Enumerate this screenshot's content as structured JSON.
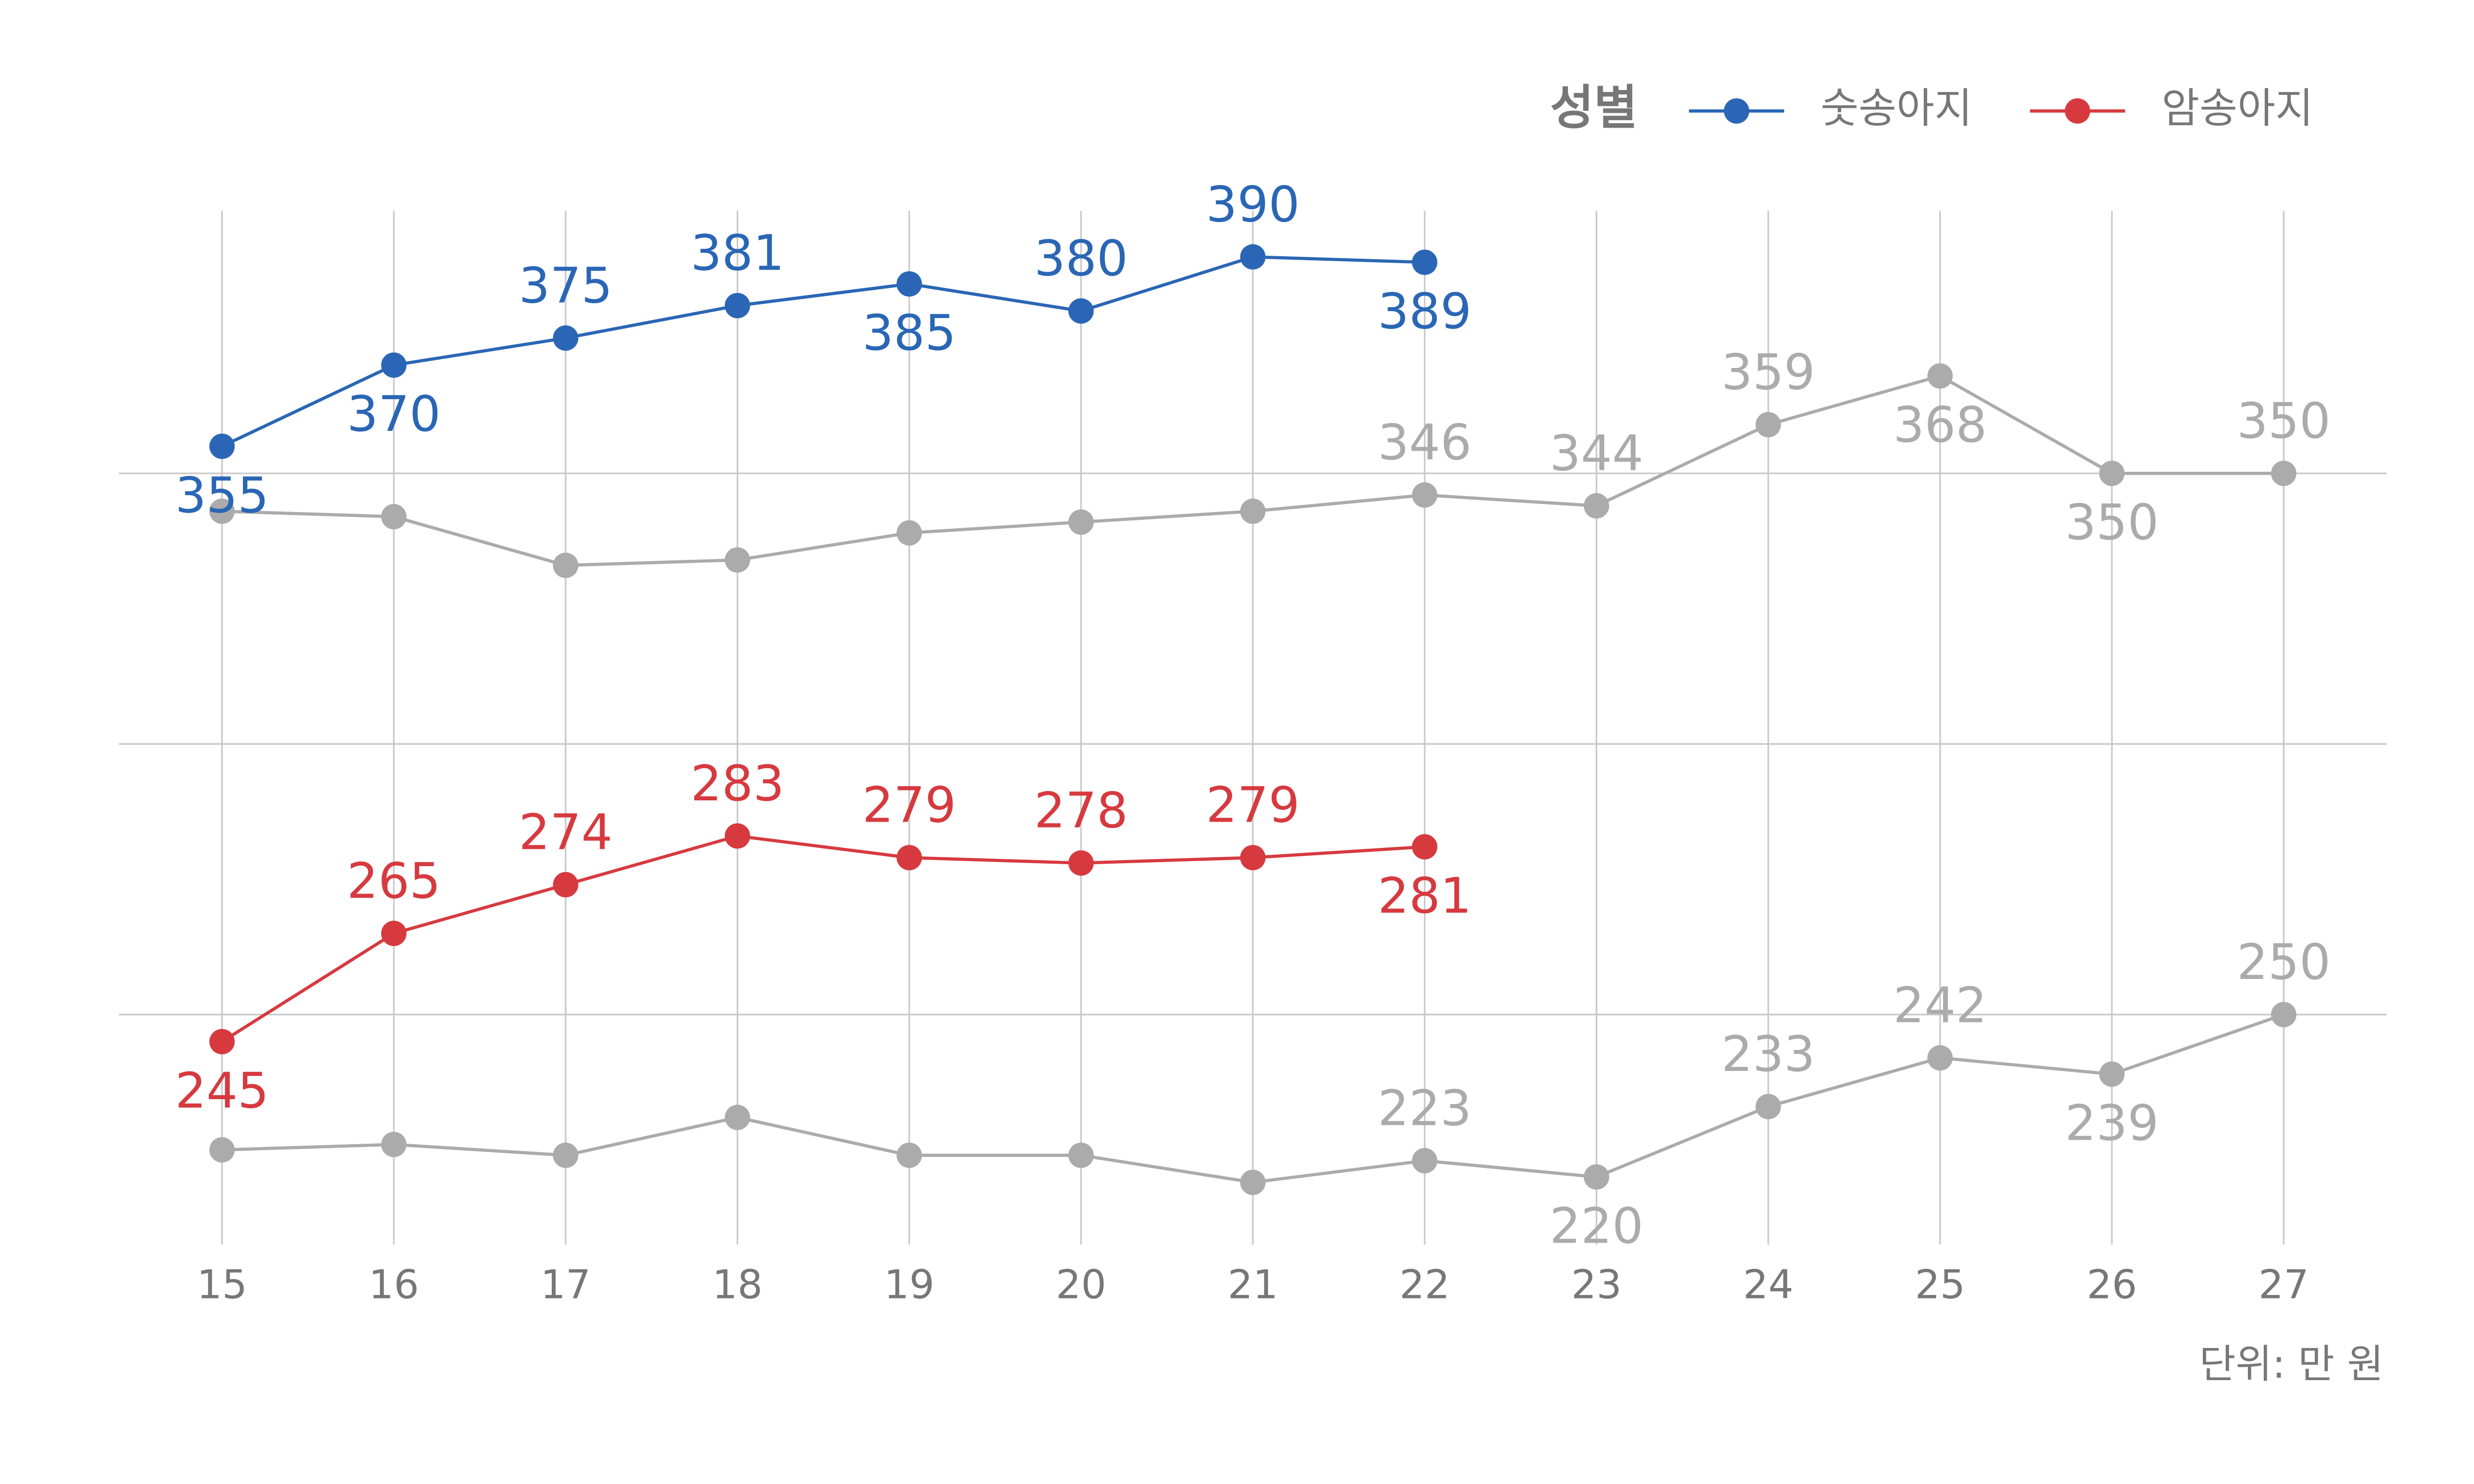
{
  "chart_data": {
    "type": "line",
    "legend_title": "성별",
    "legend": "top-right",
    "caption": "단위: 만 원",
    "x": [
      15,
      16,
      17,
      18,
      19,
      20,
      21,
      22,
      23,
      24,
      25,
      26,
      27
    ],
    "xlim": [
      14.4,
      27.6
    ],
    "xticks": [
      15,
      16,
      17,
      18,
      19,
      20,
      21,
      22,
      23,
      24,
      25,
      26,
      27
    ],
    "ylim": [
      207.5,
      398.5
    ],
    "yticks": [
      250,
      300,
      350
    ],
    "grid": true,
    "series": [
      {
        "name": "숫송아지",
        "color": "#2a66b5",
        "values": [
          355,
          370,
          375,
          381,
          385,
          380,
          390,
          389,
          null,
          null,
          null,
          null,
          null
        ]
      },
      {
        "name": "암송아지",
        "color": "#d63a3f",
        "values": [
          245,
          265,
          274,
          283,
          279,
          278,
          279,
          281,
          null,
          null,
          null,
          null,
          null
        ]
      },
      {
        "color": "#ababab",
        "values": [
          343,
          342,
          333,
          334,
          339,
          341,
          343,
          346,
          344,
          359,
          368,
          350,
          350
        ],
        "value_labels": [
          null,
          null,
          null,
          null,
          null,
          null,
          null,
          "346",
          "344",
          "359",
          "368",
          "350",
          "350"
        ]
      },
      {
        "color": "#ababab",
        "values": [
          225,
          226,
          224,
          231,
          224,
          224,
          219,
          223,
          220,
          233,
          242,
          239,
          250
        ],
        "value_labels": [
          null,
          null,
          null,
          null,
          null,
          null,
          null,
          "223",
          "220",
          "233",
          "242",
          "239",
          "250"
        ]
      }
    ]
  }
}
